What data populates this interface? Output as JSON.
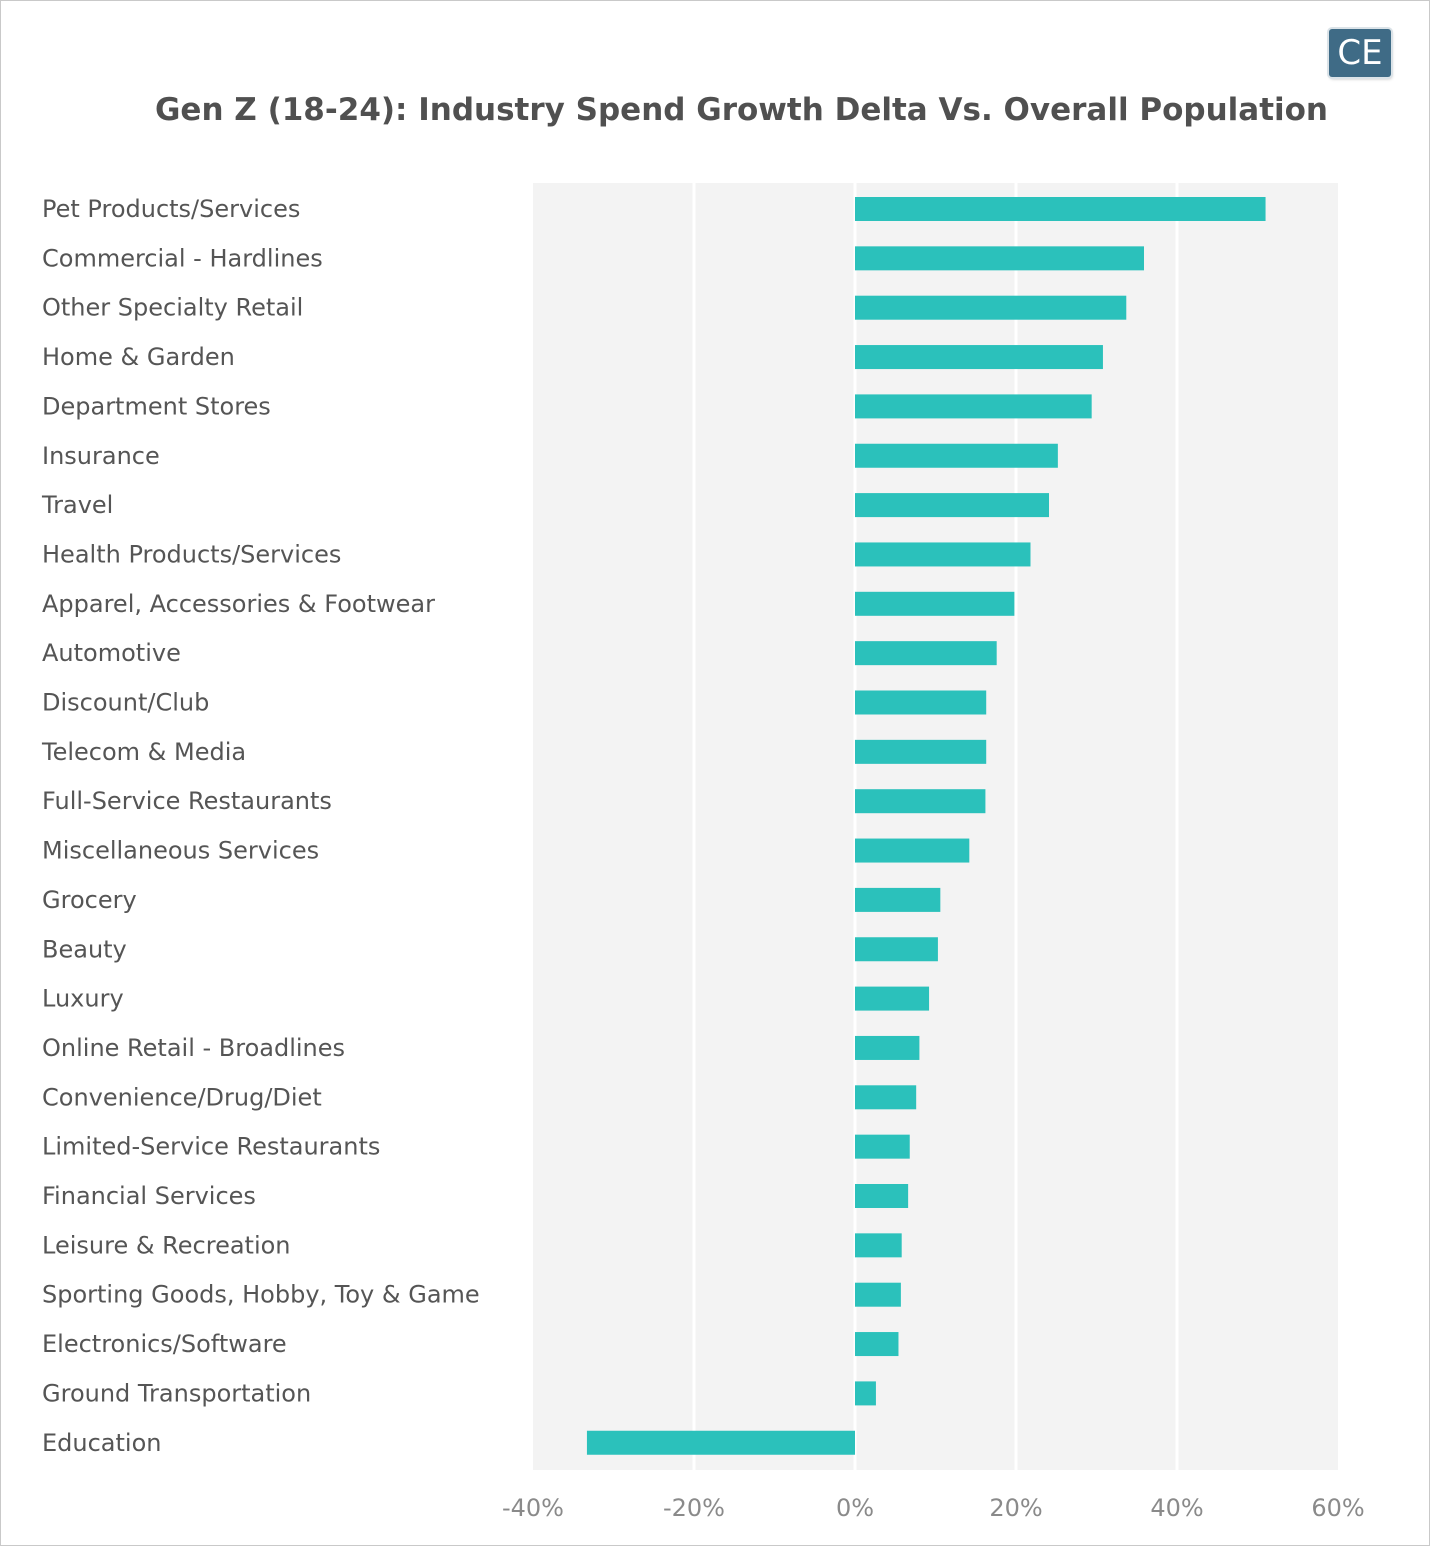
{
  "logo": {
    "text": "CE"
  },
  "chart_data": {
    "type": "bar",
    "orientation": "horizontal",
    "title": "Gen Z (18-24): Industry Spend Growth Delta Vs. Overall Population",
    "xlabel": "",
    "ylabel": "",
    "xlim": [
      -40,
      60
    ],
    "x_ticks": [
      "-40%",
      "-20%",
      "0%",
      "20%",
      "40%",
      "60%"
    ],
    "grid": true,
    "bar_color": "#2bc1bb",
    "categories": [
      "Pet Products/Services",
      "Commercial - Hardlines",
      "Other Specialty Retail",
      "Home & Garden",
      "Department Stores",
      "Insurance",
      "Travel",
      "Health Products/Services",
      "Apparel, Accessories & Footwear",
      "Automotive",
      "Discount/Club",
      "Telecom & Media",
      "Full-Service Restaurants",
      "Miscellaneous Services",
      "Grocery",
      "Beauty",
      "Luxury",
      "Online Retail - Broadlines",
      "Convenience/Drug/Diet",
      "Limited-Service Restaurants",
      "Financial Services",
      "Leisure & Recreation",
      "Sporting Goods, Hobby, Toy & Game",
      "Electronics/Software",
      "Ground Transportation",
      "Education"
    ],
    "values": [
      51.0,
      35.9,
      33.7,
      30.8,
      29.4,
      25.2,
      24.1,
      21.8,
      19.8,
      17.6,
      16.3,
      16.3,
      16.2,
      14.2,
      10.6,
      10.3,
      9.2,
      8.0,
      7.6,
      6.8,
      6.6,
      5.8,
      5.7,
      5.4,
      2.6,
      -33.3
    ]
  }
}
